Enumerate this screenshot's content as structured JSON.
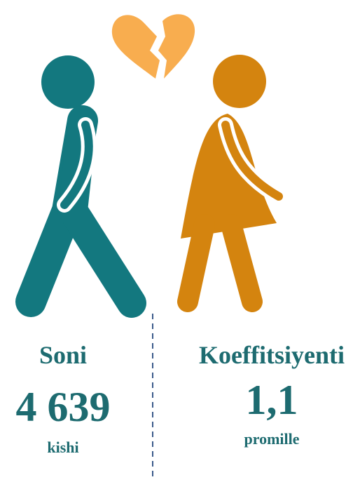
{
  "left": {
    "label": "Soni",
    "value": "4 639",
    "unit": "kishi"
  },
  "right": {
    "label": "Koeffitsiyenti",
    "value": "1,1",
    "unit": "promille"
  }
}
